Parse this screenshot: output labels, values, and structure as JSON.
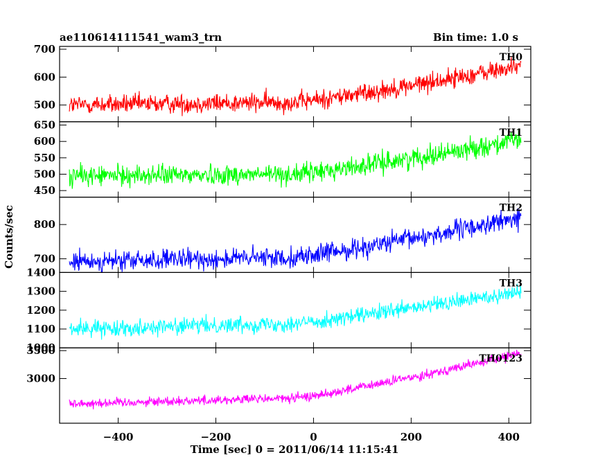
{
  "header": {
    "left_title": "ae110614111541_wam3_trn",
    "right_title": "Bin time: 1.0 s"
  },
  "chart_data": {
    "type": "line",
    "xlabel": "Time [sec] 0 = 2011/06/14 11:15:41",
    "ylabel": "Counts/sec",
    "xlim": [
      -520,
      445
    ],
    "x_range": [
      -500,
      425
    ],
    "x_ticks": [
      -400,
      -200,
      0,
      200,
      400
    ],
    "x_tick_labels": [
      "−400",
      "−200",
      "0",
      "200",
      "400"
    ],
    "panels": [
      {
        "name": "TH0",
        "color": "#ff0000",
        "ylim": [
          440,
          710
        ],
        "yticks": [
          500,
          600,
          700
        ],
        "ytick_labels": [
          "500",
          "600",
          "700"
        ],
        "trend": {
          "start": 500,
          "mid": 510,
          "end": 640
        },
        "noise_amplitude": 45
      },
      {
        "name": "TH1",
        "color": "#00ff00",
        "ylim": [
          430,
          660
        ],
        "yticks": [
          450,
          500,
          550,
          600,
          650
        ],
        "ytick_labels": [
          "450",
          "500",
          "550",
          "600",
          "650"
        ],
        "trend": {
          "start": 495,
          "mid": 500,
          "end": 605
        },
        "noise_amplitude": 40
      },
      {
        "name": "TH2",
        "color": "#0000ff",
        "ylim": [
          660,
          880
        ],
        "yticks": [
          700,
          800
        ],
        "ytick_labels": [
          "700",
          "800"
        ],
        "trend": {
          "start": 690,
          "mid": 705,
          "end": 820
        },
        "noise_amplitude": 38
      },
      {
        "name": "TH3",
        "color": "#00ffff",
        "ylim": [
          1000,
          1400
        ],
        "yticks": [
          1000,
          1100,
          1200,
          1300,
          1400
        ],
        "ytick_labels": [
          "1000",
          "1100",
          "1200",
          "1300",
          "1400"
        ],
        "trend": {
          "start": 1100,
          "mid": 1130,
          "end": 1300
        },
        "noise_amplitude": 55
      },
      {
        "name": "TH0123",
        "color": "#ff00ff",
        "ylim": [
          2200,
          3550
        ],
        "yticks": [
          3000,
          3500
        ],
        "ytick_labels": [
          "3000",
          "3500"
        ],
        "trend": {
          "start": 2550,
          "mid": 2650,
          "end": 3450
        },
        "noise_amplitude": 110
      }
    ]
  }
}
